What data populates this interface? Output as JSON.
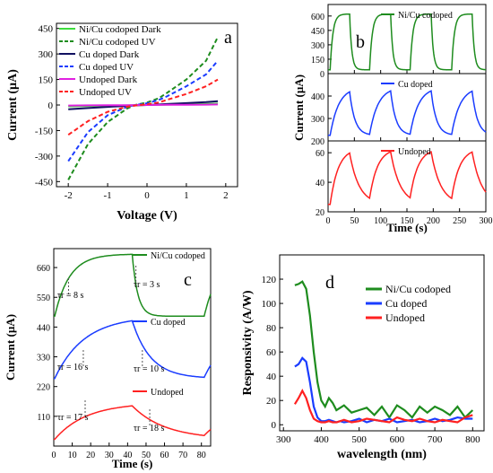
{
  "colors": {
    "green": "#1e8c1e",
    "bright_green": "#3ddc3d",
    "navy": "#101060",
    "blue": "#1a3cff",
    "magenta": "#e020e0",
    "red": "#ff2020"
  },
  "chart_data": [
    {
      "panel": "a",
      "type": "line",
      "xlabel": "Voltage (V)",
      "ylabel": "Current (µA)",
      "xlim": [
        -2.3,
        2.3
      ],
      "ylim": [
        -480,
        480
      ],
      "xticks": [
        -2,
        -1,
        0,
        1,
        2
      ],
      "yticks": [
        -450,
        -300,
        -150,
        0,
        150,
        300,
        450
      ],
      "legend_placement": "top-left",
      "x": [
        -2,
        -1.5,
        -1,
        -0.5,
        -0.3,
        0,
        0.3,
        0.5,
        1,
        1.5,
        1.8
      ],
      "series": [
        {
          "name": "Ni/Cu codoped Dark",
          "style": "solid",
          "color": "#3ddc3d",
          "values": [
            -8,
            -6,
            -4,
            -2,
            -1,
            0,
            1,
            2,
            4,
            6,
            8
          ]
        },
        {
          "name": "Ni/Cu codoped UV",
          "style": "dashed",
          "color": "#1e8c1e",
          "values": [
            -440,
            -230,
            -100,
            -20,
            0,
            15,
            40,
            70,
            150,
            260,
            400
          ]
        },
        {
          "name": "Cu doped Dark",
          "style": "solid",
          "color": "#101060",
          "values": [
            -25,
            -18,
            -11,
            -5,
            -2,
            0,
            3,
            6,
            11,
            17,
            22
          ]
        },
        {
          "name": "Cu doped UV",
          "style": "dashed",
          "color": "#1a3cff",
          "values": [
            -330,
            -160,
            -60,
            -10,
            0,
            10,
            30,
            50,
            110,
            180,
            260
          ]
        },
        {
          "name": "Undoped Dark",
          "style": "solid",
          "color": "#e020e0",
          "values": [
            -3,
            -2,
            -1.5,
            -1,
            -0.5,
            0,
            0.5,
            1,
            1.5,
            2,
            3
          ]
        },
        {
          "name": "Undoped UV",
          "style": "dashed",
          "color": "#ff2020",
          "values": [
            -175,
            -95,
            -40,
            -10,
            -3,
            5,
            15,
            30,
            65,
            110,
            150
          ]
        }
      ]
    },
    {
      "panel": "b",
      "type": "line",
      "xlabel": "Time (s)",
      "ylabel": "Current (µA)",
      "xlim": [
        0,
        300
      ],
      "xticks": [
        0,
        50,
        100,
        150,
        200,
        250,
        300
      ],
      "subplots": [
        {
          "name": "Ni/Cu codoped",
          "color": "#1e8c1e",
          "ylim": [
            0,
            720
          ],
          "yticks": [
            0,
            150,
            300,
            450,
            600
          ],
          "dark": 40,
          "light": 620,
          "rise": 5,
          "decay": 4
        },
        {
          "name": "Cu doped",
          "color": "#1a3cff",
          "ylim": [
            200,
            500
          ],
          "yticks": [
            200,
            300,
            400
          ],
          "dark": 225,
          "light": 440,
          "rise": 16,
          "decay": 10
        },
        {
          "name": "Undoped",
          "color": "#ff2020",
          "ylim": [
            20,
            68
          ],
          "yticks": [
            20,
            40,
            60
          ],
          "dark": 25,
          "light": 63,
          "rise": 15,
          "decay": 18
        }
      ],
      "cycles_on": [
        [
          5,
          42
        ],
        [
          80,
          120
        ],
        [
          157,
          197
        ],
        [
          236,
          275
        ]
      ]
    },
    {
      "panel": "c",
      "type": "line",
      "xlabel": "Time (s)",
      "ylabel": "Current (µA)",
      "xlim": [
        0,
        85
      ],
      "ylim": [
        0,
        730
      ],
      "xticks": [
        0,
        10,
        20,
        30,
        40,
        50,
        60,
        70,
        80
      ],
      "yticks": [
        0,
        110,
        220,
        330,
        440,
        550,
        660
      ],
      "ytick_labels": [
        "110",
        "220",
        "330",
        "440",
        "550",
        "660"
      ],
      "series": [
        {
          "name": "Ni/Cu codoped",
          "color": "#1e8c1e",
          "base": 480,
          "top": 710,
          "rise_label": "τr = 8 s",
          "decay_label": "τr = 3 s",
          "rise": 8,
          "decay": 3
        },
        {
          "name": "Cu doped",
          "color": "#1a3cff",
          "base": 250,
          "top": 480,
          "rise_label": "τr = 16 s",
          "decay_label": "τr = 10 s",
          "rise": 16,
          "decay": 10
        },
        {
          "name": "Undoped",
          "color": "#ff2020",
          "base": 25,
          "top": 160,
          "rise_label": "τr = 17 s",
          "decay_label": "τr = 18 s",
          "rise": 17,
          "decay": 18
        }
      ],
      "on_start": 1,
      "off_time": 43,
      "on_again": 82
    },
    {
      "panel": "d",
      "type": "line",
      "xlabel": "wavelength (nm)",
      "ylabel": "Responsivity (A/W)",
      "xlim": [
        290,
        830
      ],
      "ylim": [
        -5,
        140
      ],
      "xticks": [
        300,
        400,
        500,
        600,
        700,
        800
      ],
      "yticks": [
        0,
        20,
        40,
        60,
        80,
        100,
        120
      ],
      "legend_placement": "top-right",
      "x": [
        330,
        340,
        350,
        360,
        370,
        380,
        390,
        400,
        410,
        420,
        430,
        440,
        450,
        460,
        480,
        500,
        520,
        540,
        560,
        580,
        600,
        620,
        640,
        660,
        680,
        700,
        720,
        740,
        760,
        780,
        800
      ],
      "series": [
        {
          "name": "Ni/Cu codoped",
          "color": "#1e8c1e",
          "values": [
            115,
            116,
            118,
            112,
            90,
            60,
            35,
            20,
            15,
            22,
            18,
            12,
            14,
            16,
            10,
            12,
            14,
            8,
            15,
            6,
            16,
            12,
            6,
            15,
            10,
            15,
            12,
            8,
            15,
            6,
            12
          ]
        },
        {
          "name": "Cu doped",
          "color": "#1a3cff",
          "values": [
            48,
            50,
            55,
            52,
            35,
            15,
            6,
            3,
            3,
            4,
            3,
            2,
            3,
            2,
            3,
            5,
            2,
            4,
            3,
            5,
            2,
            3,
            4,
            2,
            3,
            5,
            3,
            4,
            6,
            5,
            5
          ]
        },
        {
          "name": "Undoped",
          "color": "#ff2020",
          "values": [
            17,
            22,
            28,
            22,
            12,
            5,
            3,
            2,
            2,
            3,
            2,
            2,
            3,
            4,
            2,
            3,
            5,
            4,
            3,
            2,
            6,
            4,
            3,
            5,
            3,
            2,
            4,
            3,
            2,
            6,
            8
          ]
        }
      ]
    }
  ],
  "labels": {
    "panel_a": "a",
    "panel_b": "b",
    "panel_c": "c",
    "panel_d": "d"
  }
}
